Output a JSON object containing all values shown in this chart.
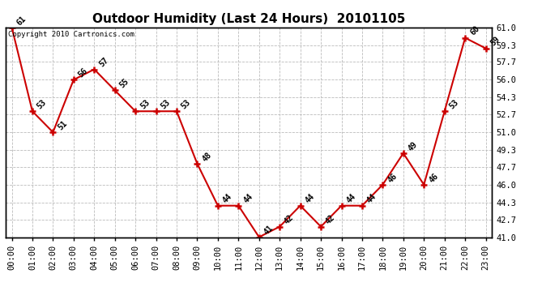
{
  "title": "Outdoor Humidity (Last 24 Hours)  20101105",
  "copyright": "Copyright 2010 Cartronics.com",
  "x_labels": [
    "00:00",
    "01:00",
    "02:00",
    "03:00",
    "04:00",
    "05:00",
    "06:00",
    "07:00",
    "08:00",
    "09:00",
    "10:00",
    "11:00",
    "12:00",
    "13:00",
    "14:00",
    "15:00",
    "16:00",
    "17:00",
    "18:00",
    "19:00",
    "20:00",
    "21:00",
    "22:00",
    "23:00"
  ],
  "y_values": [
    61,
    53,
    51,
    56,
    57,
    55,
    53,
    53,
    53,
    48,
    44,
    44,
    41,
    42,
    44,
    42,
    44,
    44,
    46,
    49,
    46,
    53,
    60,
    59
  ],
  "y_ticks": [
    41.0,
    42.7,
    44.3,
    46.0,
    47.7,
    49.3,
    51.0,
    52.7,
    54.3,
    56.0,
    57.7,
    59.3,
    61.0
  ],
  "y_min": 41.0,
  "y_max": 61.0,
  "line_color": "#cc0000",
  "marker_color": "#cc0000",
  "background_color": "#ffffff",
  "grid_color": "#bbbbbb",
  "title_fontsize": 11,
  "tick_fontsize": 7.5,
  "annotation_fontsize": 7,
  "copyright_fontsize": 6.5
}
